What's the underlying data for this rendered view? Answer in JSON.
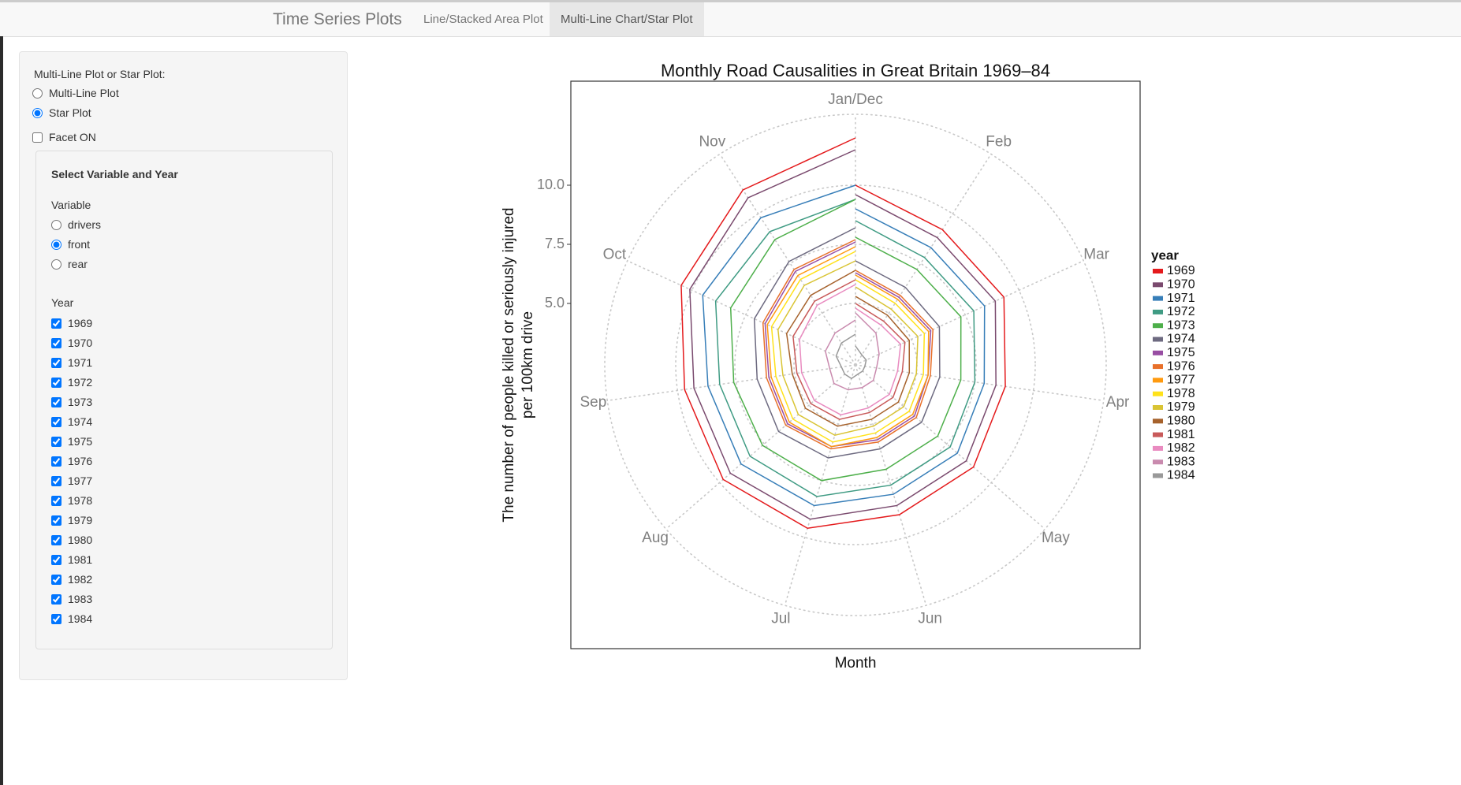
{
  "navbar": {
    "brand": "Time Series Plots",
    "tabs": [
      "Line/Stacked Area Plot",
      "Multi-Line Chart/Star Plot"
    ],
    "active_tab": "Multi-Line Chart/Star Plot"
  },
  "sidebar": {
    "plot_type_label": "Multi-Line Plot or Star Plot:",
    "plot_type_options": [
      "Multi-Line Plot",
      "Star Plot"
    ],
    "plot_type_selected": "Star Plot",
    "facet_label": "Facet ON",
    "facet_checked": false,
    "section_title": "Select Variable and Year",
    "variable_label": "Variable",
    "variable_options": [
      "drivers",
      "front",
      "rear"
    ],
    "variable_selected": "front",
    "year_label": "Year",
    "year_options": [
      "1969",
      "1970",
      "1971",
      "1972",
      "1973",
      "1974",
      "1975",
      "1976",
      "1977",
      "1978",
      "1979",
      "1980",
      "1981",
      "1982",
      "1983",
      "1984"
    ],
    "years_checked": true
  },
  "chart_data": {
    "type": "star",
    "title": "Monthly Road Causalities in Great Britain 1969–84",
    "x_label": "Month",
    "y_label": [
      "The number of people killed or seriously injured",
      "per 100km drive"
    ],
    "legend_title": "year",
    "x": [
      1,
      2,
      3,
      4,
      5,
      6,
      7,
      8,
      9,
      10,
      11,
      12
    ],
    "xlim": [
      1,
      12
    ],
    "xticks": [
      {
        "value": 1,
        "label": "Jan/Dec"
      },
      {
        "value": 2,
        "label": "Feb"
      },
      {
        "value": 3,
        "label": "Mar"
      },
      {
        "value": 4,
        "label": "Apr"
      },
      {
        "value": 5,
        "label": "May"
      },
      {
        "value": 6,
        "label": "Jun"
      },
      {
        "value": 7,
        "label": "Jul"
      },
      {
        "value": 8,
        "label": "Aug"
      },
      {
        "value": 9,
        "label": "Sep"
      },
      {
        "value": 10,
        "label": "Oct"
      },
      {
        "value": 11,
        "label": "Nov"
      }
    ],
    "ylim": [
      2.4,
      13.0
    ],
    "yticks": [
      {
        "value": 5,
        "label": "5.0"
      },
      {
        "value": 7.5,
        "label": "7.5"
      },
      {
        "value": 10,
        "label": "10.0"
      }
    ],
    "grid": true,
    "series": [
      {
        "name": "1969",
        "color": "#e41a1c",
        "values": [
          10.0,
          9.2,
          9.3,
          8.8,
          9.0,
          9.0,
          9.6,
          9.8,
          9.7,
          10.5,
          11.2,
          12.0
        ]
      },
      {
        "name": "1970",
        "color": "#7a4a6e",
        "values": [
          9.6,
          8.8,
          8.9,
          8.4,
          8.6,
          8.6,
          9.2,
          9.4,
          9.3,
          10.1,
          10.8,
          11.5
        ]
      },
      {
        "name": "1971",
        "color": "#377eb8",
        "values": [
          9.0,
          8.3,
          8.4,
          7.9,
          8.1,
          8.1,
          8.6,
          8.8,
          8.7,
          9.5,
          9.8,
          10.0
        ]
      },
      {
        "name": "1972",
        "color": "#3f9b83",
        "values": [
          8.5,
          7.8,
          7.9,
          7.5,
          7.7,
          7.7,
          8.2,
          8.3,
          8.2,
          8.9,
          9.1,
          9.4
        ]
      },
      {
        "name": "1973",
        "color": "#4daf4a",
        "values": [
          7.8,
          7.2,
          7.3,
          6.9,
          7.0,
          7.0,
          7.5,
          7.6,
          7.6,
          8.2,
          8.7,
          9.4
        ]
      },
      {
        "name": "1974",
        "color": "#6d6a80",
        "values": [
          6.8,
          6.3,
          6.3,
          6.0,
          6.1,
          6.1,
          6.5,
          6.7,
          6.6,
          7.1,
          7.6,
          8.2
        ]
      },
      {
        "name": "1975",
        "color": "#984ea3",
        "values": [
          6.3,
          5.8,
          5.9,
          5.5,
          5.7,
          5.7,
          6.0,
          6.2,
          6.1,
          6.6,
          7.1,
          7.6
        ]
      },
      {
        "name": "1976",
        "color": "#e8702a",
        "values": [
          6.4,
          5.9,
          6.0,
          5.6,
          5.8,
          5.8,
          6.1,
          6.3,
          6.2,
          6.7,
          7.2,
          7.7
        ]
      },
      {
        "name": "1977",
        "color": "#ff9a0f",
        "values": [
          6.2,
          5.7,
          5.8,
          5.5,
          5.6,
          5.6,
          6.0,
          6.1,
          6.0,
          6.5,
          6.9,
          7.4
        ]
      },
      {
        "name": "1978",
        "color": "#ffe21a",
        "values": [
          6.0,
          5.5,
          5.6,
          5.3,
          5.4,
          5.4,
          5.8,
          5.9,
          5.8,
          6.3,
          6.7,
          7.2
        ]
      },
      {
        "name": "1979",
        "color": "#d9c434",
        "values": [
          5.7,
          5.2,
          5.3,
          5.0,
          5.1,
          5.1,
          5.5,
          5.6,
          5.5,
          6.0,
          6.4,
          6.8
        ]
      },
      {
        "name": "1980",
        "color": "#a6622c",
        "values": [
          5.3,
          4.9,
          4.9,
          4.7,
          4.8,
          4.8,
          5.1,
          5.2,
          5.1,
          5.6,
          5.9,
          6.4
        ]
      },
      {
        "name": "1981",
        "color": "#c85a5a",
        "values": [
          5.0,
          4.6,
          4.7,
          4.4,
          4.5,
          4.5,
          4.8,
          4.9,
          4.9,
          5.3,
          5.6,
          6.0
        ]
      },
      {
        "name": "1982",
        "color": "#e98bc0",
        "values": [
          4.8,
          4.4,
          4.5,
          4.2,
          4.3,
          4.3,
          4.6,
          4.7,
          4.7,
          5.0,
          5.4,
          5.8
        ]
      },
      {
        "name": "1983",
        "color": "#c98aae",
        "values": [
          4.6,
          4.0,
          3.5,
          3.3,
          3.4,
          3.4,
          3.5,
          3.6,
          3.5,
          3.8,
          4.0,
          4.3
        ]
      },
      {
        "name": "1984",
        "color": "#999999",
        "values": [
          3.2,
          2.9,
          2.9,
          2.8,
          2.8,
          2.8,
          3.0,
          3.0,
          3.0,
          3.3,
          3.5,
          3.7
        ]
      }
    ]
  }
}
